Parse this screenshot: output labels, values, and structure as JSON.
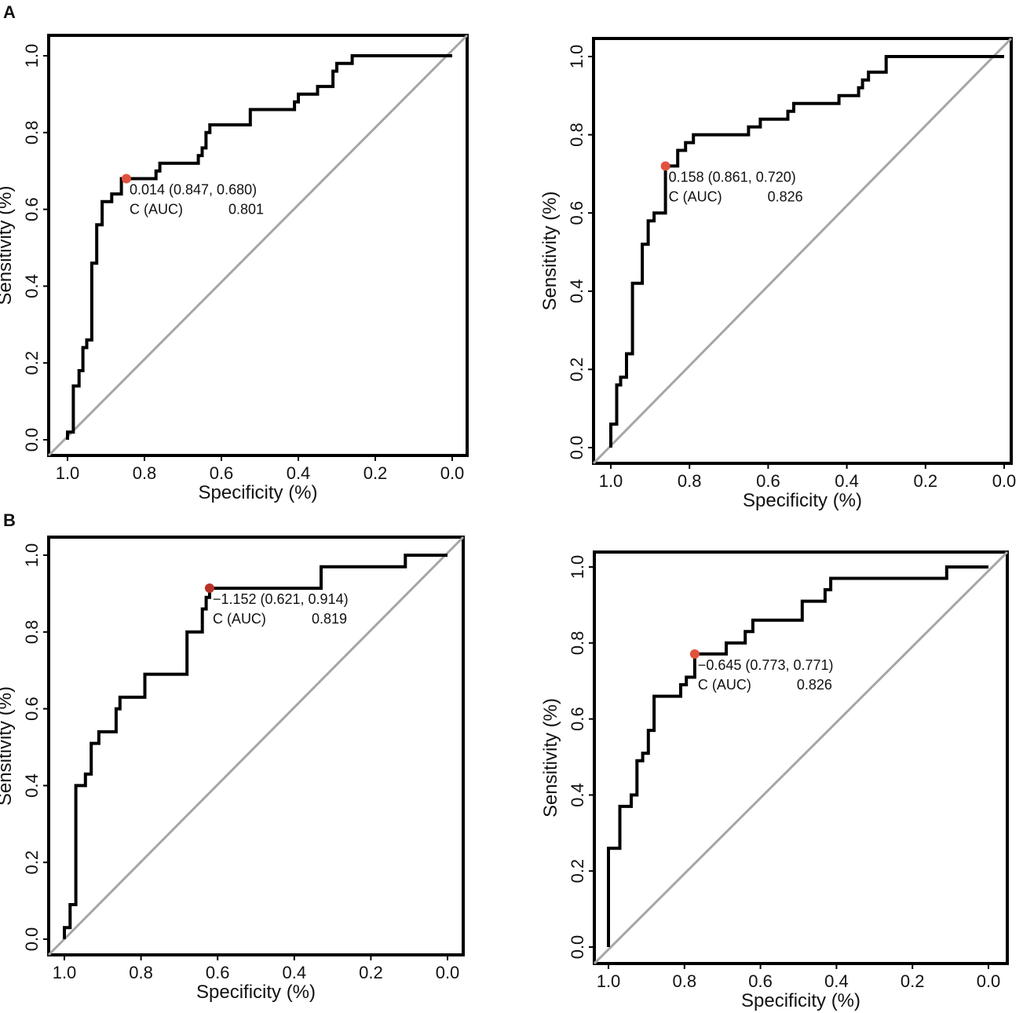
{
  "panel_labels": [
    "A",
    "B"
  ],
  "colors": {
    "curve": "#000000",
    "diagonal": "#a6a6a6",
    "threshold_point": "#e0523e",
    "threshold_point_dark": "#b83228"
  },
  "chart_data": [
    {
      "type": "line",
      "panel": "A",
      "position": "top-left",
      "xlabel": "Specificity (%)",
      "ylabel": "Sensitivity (%)",
      "xlim": [
        1.0,
        0.0
      ],
      "ylim": [
        0.0,
        1.0
      ],
      "xticks": [
        "1.0",
        "0.8",
        "0.6",
        "0.4",
        "0.2",
        "0.0"
      ],
      "yticks": [
        "0.0",
        "0.2",
        "0.4",
        "0.6",
        "0.8",
        "1.0"
      ],
      "series": [
        {
          "name": "ROC",
          "points": [
            [
              1.0,
              0.0
            ],
            [
              1.0,
              0.02
            ],
            [
              0.985,
              0.02
            ],
            [
              0.985,
              0.14
            ],
            [
              0.97,
              0.14
            ],
            [
              0.97,
              0.18
            ],
            [
              0.96,
              0.18
            ],
            [
              0.96,
              0.24
            ],
            [
              0.95,
              0.24
            ],
            [
              0.95,
              0.26
            ],
            [
              0.937,
              0.26
            ],
            [
              0.937,
              0.46
            ],
            [
              0.924,
              0.46
            ],
            [
              0.924,
              0.56
            ],
            [
              0.91,
              0.56
            ],
            [
              0.91,
              0.62
            ],
            [
              0.885,
              0.62
            ],
            [
              0.885,
              0.64
            ],
            [
              0.86,
              0.64
            ],
            [
              0.86,
              0.68
            ],
            [
              0.77,
              0.68
            ],
            [
              0.77,
              0.7
            ],
            [
              0.76,
              0.7
            ],
            [
              0.76,
              0.72
            ],
            [
              0.66,
              0.72
            ],
            [
              0.66,
              0.74
            ],
            [
              0.65,
              0.74
            ],
            [
              0.65,
              0.76
            ],
            [
              0.64,
              0.76
            ],
            [
              0.64,
              0.8
            ],
            [
              0.63,
              0.8
            ],
            [
              0.63,
              0.82
            ],
            [
              0.525,
              0.82
            ],
            [
              0.525,
              0.86
            ],
            [
              0.41,
              0.86
            ],
            [
              0.41,
              0.88
            ],
            [
              0.4,
              0.88
            ],
            [
              0.4,
              0.9
            ],
            [
              0.35,
              0.9
            ],
            [
              0.35,
              0.92
            ],
            [
              0.31,
              0.92
            ],
            [
              0.31,
              0.96
            ],
            [
              0.3,
              0.96
            ],
            [
              0.3,
              0.98
            ],
            [
              0.26,
              0.98
            ],
            [
              0.26,
              1.0
            ],
            [
              0.0,
              1.0
            ]
          ]
        }
      ],
      "threshold": {
        "specificity": 0.847,
        "sensitivity": 0.68,
        "label": "0.014 (0.847, 0.680)"
      },
      "auc_label": "C (AUC)",
      "auc_value": "0.801"
    },
    {
      "type": "line",
      "panel": "",
      "position": "top-right",
      "xlabel": "Specificity (%)",
      "ylabel": "Sensitivity (%)",
      "xlim": [
        1.0,
        0.0
      ],
      "ylim": [
        0.0,
        1.0
      ],
      "xticks": [
        "1.0",
        "0.8",
        "0.6",
        "0.4",
        "0.2",
        "0.0"
      ],
      "yticks": [
        "0.0",
        "0.2",
        "0.4",
        "0.6",
        "0.8",
        "1.0"
      ],
      "series": [
        {
          "name": "ROC",
          "points": [
            [
              1.0,
              0.0
            ],
            [
              1.0,
              0.06
            ],
            [
              0.985,
              0.06
            ],
            [
              0.985,
              0.16
            ],
            [
              0.975,
              0.16
            ],
            [
              0.975,
              0.18
            ],
            [
              0.96,
              0.18
            ],
            [
              0.96,
              0.24
            ],
            [
              0.945,
              0.24
            ],
            [
              0.945,
              0.42
            ],
            [
              0.92,
              0.42
            ],
            [
              0.92,
              0.52
            ],
            [
              0.905,
              0.52
            ],
            [
              0.905,
              0.58
            ],
            [
              0.89,
              0.58
            ],
            [
              0.89,
              0.6
            ],
            [
              0.861,
              0.6
            ],
            [
              0.861,
              0.72
            ],
            [
              0.83,
              0.72
            ],
            [
              0.83,
              0.76
            ],
            [
              0.81,
              0.76
            ],
            [
              0.81,
              0.78
            ],
            [
              0.79,
              0.78
            ],
            [
              0.79,
              0.8
            ],
            [
              0.65,
              0.8
            ],
            [
              0.65,
              0.82
            ],
            [
              0.62,
              0.82
            ],
            [
              0.62,
              0.84
            ],
            [
              0.55,
              0.84
            ],
            [
              0.55,
              0.86
            ],
            [
              0.535,
              0.86
            ],
            [
              0.535,
              0.88
            ],
            [
              0.42,
              0.88
            ],
            [
              0.42,
              0.9
            ],
            [
              0.37,
              0.9
            ],
            [
              0.37,
              0.92
            ],
            [
              0.36,
              0.92
            ],
            [
              0.36,
              0.94
            ],
            [
              0.345,
              0.94
            ],
            [
              0.345,
              0.96
            ],
            [
              0.3,
              0.96
            ],
            [
              0.3,
              1.0
            ],
            [
              0.0,
              1.0
            ]
          ]
        }
      ],
      "threshold": {
        "specificity": 0.861,
        "sensitivity": 0.72,
        "label": "0.158 (0.861, 0.720)"
      },
      "auc_label": "C (AUC)",
      "auc_value": "0.826"
    },
    {
      "type": "line",
      "panel": "B",
      "position": "bottom-left",
      "xlabel": "Specificity (%)",
      "ylabel": "Sensitivity (%)",
      "xlim": [
        1.0,
        0.0
      ],
      "ylim": [
        0.0,
        1.0
      ],
      "xticks": [
        "1.0",
        "0.8",
        "0.6",
        "0.4",
        "0.2",
        "0.0"
      ],
      "yticks": [
        "0.0",
        "0.2",
        "0.4",
        "0.6",
        "0.8",
        "1.0"
      ],
      "series": [
        {
          "name": "ROC",
          "points": [
            [
              1.0,
              0.0
            ],
            [
              1.0,
              0.03
            ],
            [
              0.985,
              0.03
            ],
            [
              0.985,
              0.09
            ],
            [
              0.97,
              0.09
            ],
            [
              0.97,
              0.4
            ],
            [
              0.945,
              0.4
            ],
            [
              0.945,
              0.43
            ],
            [
              0.93,
              0.43
            ],
            [
              0.93,
              0.51
            ],
            [
              0.91,
              0.51
            ],
            [
              0.91,
              0.54
            ],
            [
              0.865,
              0.54
            ],
            [
              0.865,
              0.6
            ],
            [
              0.855,
              0.6
            ],
            [
              0.855,
              0.63
            ],
            [
              0.79,
              0.63
            ],
            [
              0.79,
              0.69
            ],
            [
              0.68,
              0.69
            ],
            [
              0.68,
              0.8
            ],
            [
              0.64,
              0.8
            ],
            [
              0.64,
              0.86
            ],
            [
              0.63,
              0.86
            ],
            [
              0.63,
              0.89
            ],
            [
              0.621,
              0.89
            ],
            [
              0.621,
              0.914
            ],
            [
              0.33,
              0.914
            ],
            [
              0.33,
              0.97
            ],
            [
              0.11,
              0.97
            ],
            [
              0.11,
              1.0
            ],
            [
              0.0,
              1.0
            ]
          ]
        }
      ],
      "threshold": {
        "specificity": 0.621,
        "sensitivity": 0.914,
        "label": "−1.152 (0.621, 0.914)"
      },
      "auc_label": "C (AUC)",
      "auc_value": "0.819"
    },
    {
      "type": "line",
      "panel": "",
      "position": "bottom-right",
      "xlabel": "Specificity (%)",
      "ylabel": "Sensitivity (%)",
      "xlim": [
        1.0,
        0.0
      ],
      "ylim": [
        0.0,
        1.0
      ],
      "xticks": [
        "1.0",
        "0.8",
        "0.6",
        "0.4",
        "0.2",
        "0.0"
      ],
      "yticks": [
        "0.0",
        "0.2",
        "0.4",
        "0.6",
        "0.8",
        "1.0"
      ],
      "series": [
        {
          "name": "ROC",
          "points": [
            [
              1.0,
              0.0
            ],
            [
              1.0,
              0.26
            ],
            [
              0.97,
              0.26
            ],
            [
              0.97,
              0.37
            ],
            [
              0.94,
              0.37
            ],
            [
              0.94,
              0.4
            ],
            [
              0.925,
              0.4
            ],
            [
              0.925,
              0.49
            ],
            [
              0.91,
              0.49
            ],
            [
              0.91,
              0.51
            ],
            [
              0.895,
              0.51
            ],
            [
              0.895,
              0.57
            ],
            [
              0.88,
              0.57
            ],
            [
              0.88,
              0.66
            ],
            [
              0.81,
              0.66
            ],
            [
              0.81,
              0.69
            ],
            [
              0.795,
              0.69
            ],
            [
              0.795,
              0.71
            ],
            [
              0.773,
              0.71
            ],
            [
              0.773,
              0.771
            ],
            [
              0.69,
              0.771
            ],
            [
              0.69,
              0.8
            ],
            [
              0.64,
              0.8
            ],
            [
              0.64,
              0.83
            ],
            [
              0.62,
              0.83
            ],
            [
              0.62,
              0.86
            ],
            [
              0.49,
              0.86
            ],
            [
              0.49,
              0.91
            ],
            [
              0.43,
              0.91
            ],
            [
              0.43,
              0.94
            ],
            [
              0.415,
              0.94
            ],
            [
              0.415,
              0.97
            ],
            [
              0.11,
              0.97
            ],
            [
              0.11,
              1.0
            ],
            [
              0.0,
              1.0
            ]
          ]
        }
      ],
      "threshold": {
        "specificity": 0.773,
        "sensitivity": 0.771,
        "label": "−0.645 (0.773, 0.771)"
      },
      "auc_label": "C (AUC)",
      "auc_value": "0.826"
    }
  ]
}
